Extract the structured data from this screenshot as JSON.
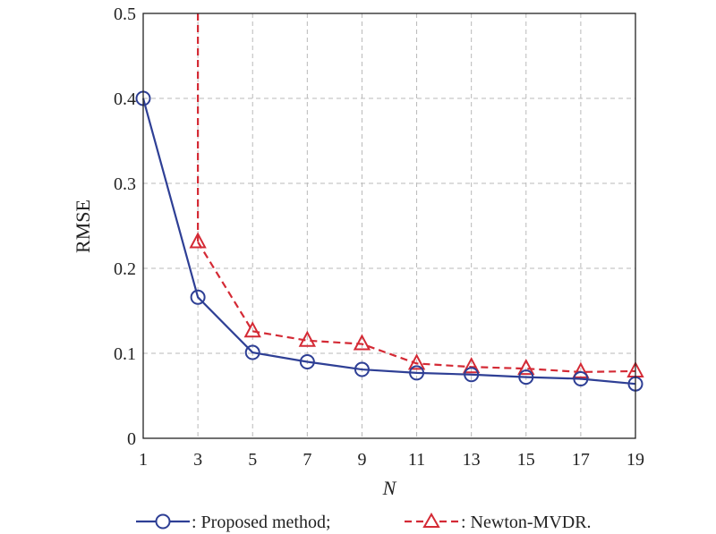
{
  "chart_data": {
    "type": "line",
    "title": "",
    "xlabel": "N",
    "ylabel": "RMSE",
    "x": [
      1,
      3,
      5,
      7,
      9,
      11,
      13,
      15,
      17,
      19
    ],
    "xlim": [
      1,
      19
    ],
    "ylim": [
      0,
      0.5
    ],
    "xticks": [
      "1",
      "3",
      "5",
      "7",
      "9",
      "11",
      "13",
      "15",
      "17",
      "19"
    ],
    "yticks": [
      "0",
      "0.1",
      "0.2",
      "0.3",
      "0.4",
      "0.5"
    ],
    "grid": true,
    "legend_placement": "bottom",
    "series": [
      {
        "name": ": Proposed method;",
        "color": "#2e3f95",
        "marker": "circle",
        "linestyle": "solid",
        "values": [
          0.4,
          0.166,
          0.101,
          0.09,
          0.081,
          0.077,
          0.075,
          0.072,
          0.07,
          0.064
        ]
      },
      {
        "name": ": Newton-MVDR.",
        "color": "#d42a35",
        "marker": "triangle",
        "linestyle": "dashed",
        "values": [
          null,
          0.231,
          0.126,
          0.115,
          0.111,
          0.088,
          0.084,
          0.082,
          0.078,
          0.079
        ],
        "note_value_at_x3_extends_above": 0.5
      }
    ]
  }
}
